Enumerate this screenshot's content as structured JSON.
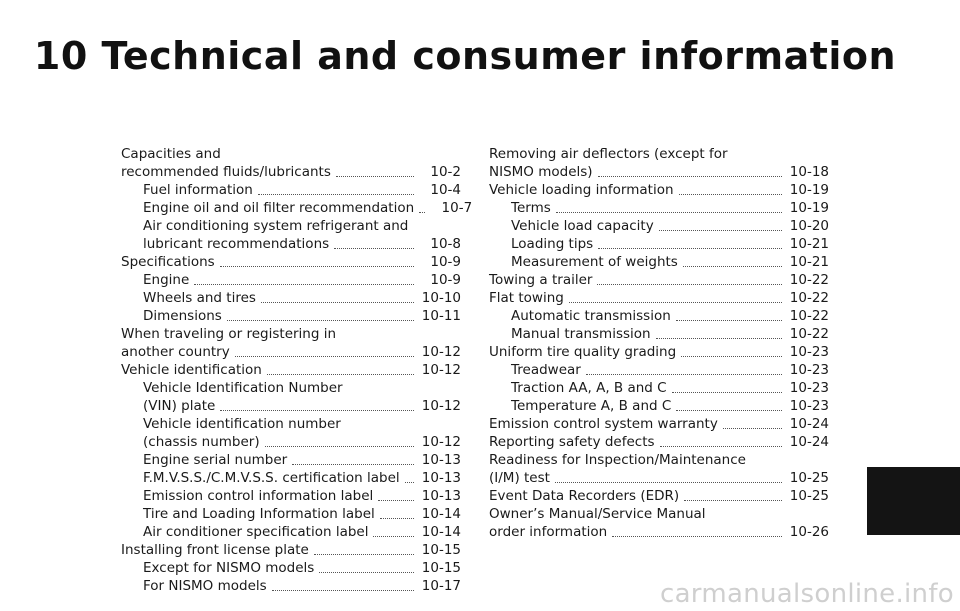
{
  "chapter_title": "10 Technical and consumer information",
  "toc_left": [
    {
      "pre": [
        "Capacities and"
      ],
      "text": "recommended fluids/lubricants",
      "page": "10-2",
      "indent": 0
    },
    {
      "pre": [],
      "text": "Fuel information",
      "page": "10-4",
      "indent": 1
    },
    {
      "pre": [],
      "text": "Engine oil and oil filter recommendation",
      "page": "10-7",
      "indent": 1
    },
    {
      "pre": [
        "Air conditioning system refrigerant and"
      ],
      "text": "lubricant recommendations",
      "page": "10-8",
      "indent": 1
    },
    {
      "pre": [],
      "text": "Specifications",
      "page": "10-9",
      "indent": 0
    },
    {
      "pre": [],
      "text": "Engine",
      "page": "10-9",
      "indent": 1
    },
    {
      "pre": [],
      "text": "Wheels and tires",
      "page": "10-10",
      "indent": 1
    },
    {
      "pre": [],
      "text": "Dimensions",
      "page": "10-11",
      "indent": 1
    },
    {
      "pre": [
        "When traveling or registering in"
      ],
      "text": "another country",
      "page": "10-12",
      "indent": 0
    },
    {
      "pre": [],
      "text": "Vehicle identification",
      "page": "10-12",
      "indent": 0
    },
    {
      "pre": [
        "Vehicle Identification Number"
      ],
      "text": "(VIN) plate",
      "page": "10-12",
      "indent": 1
    },
    {
      "pre": [
        "Vehicle identification number"
      ],
      "text": "(chassis number)",
      "page": "10-12",
      "indent": 1
    },
    {
      "pre": [],
      "text": "Engine serial number",
      "page": "10-13",
      "indent": 1
    },
    {
      "pre": [],
      "text": "F.M.V.S.S./C.M.V.S.S. certification label",
      "page": "10-13",
      "indent": 1
    },
    {
      "pre": [],
      "text": "Emission control information label",
      "page": "10-13",
      "indent": 1
    },
    {
      "pre": [],
      "text": "Tire and Loading Information label",
      "page": "10-14",
      "indent": 1
    },
    {
      "pre": [],
      "text": "Air conditioner specification label",
      "page": "10-14",
      "indent": 1
    },
    {
      "pre": [],
      "text": "Installing front license plate",
      "page": "10-15",
      "indent": 0
    },
    {
      "pre": [],
      "text": "Except for NISMO models",
      "page": "10-15",
      "indent": 1
    },
    {
      "pre": [],
      "text": "For NISMO models",
      "page": "10-17",
      "indent": 1
    }
  ],
  "toc_right": [
    {
      "pre": [
        "Removing air deflectors (except for"
      ],
      "text": "NISMO models)",
      "page": "10-18",
      "indent": 0
    },
    {
      "pre": [],
      "text": "Vehicle loading information",
      "page": "10-19",
      "indent": 0
    },
    {
      "pre": [],
      "text": "Terms",
      "page": "10-19",
      "indent": 1
    },
    {
      "pre": [],
      "text": "Vehicle load capacity",
      "page": "10-20",
      "indent": 1
    },
    {
      "pre": [],
      "text": "Loading tips",
      "page": "10-21",
      "indent": 1
    },
    {
      "pre": [],
      "text": "Measurement of weights",
      "page": "10-21",
      "indent": 1
    },
    {
      "pre": [],
      "text": "Towing a trailer",
      "page": "10-22",
      "indent": 0
    },
    {
      "pre": [],
      "text": "Flat towing",
      "page": "10-22",
      "indent": 0
    },
    {
      "pre": [],
      "text": "Automatic transmission",
      "page": "10-22",
      "indent": 1
    },
    {
      "pre": [],
      "text": "Manual transmission",
      "page": "10-22",
      "indent": 1
    },
    {
      "pre": [],
      "text": "Uniform tire quality grading",
      "page": "10-23",
      "indent": 0
    },
    {
      "pre": [],
      "text": "Treadwear",
      "page": "10-23",
      "indent": 1
    },
    {
      "pre": [],
      "text": "Traction AA, A, B and C",
      "page": "10-23",
      "indent": 1
    },
    {
      "pre": [],
      "text": "Temperature A, B and C",
      "page": "10-23",
      "indent": 1
    },
    {
      "pre": [],
      "text": "Emission control system warranty",
      "page": "10-24",
      "indent": 0
    },
    {
      "pre": [],
      "text": "Reporting safety defects",
      "page": "10-24",
      "indent": 0
    },
    {
      "pre": [
        "Readiness for Inspection/Maintenance"
      ],
      "text": "(I/M) test",
      "page": "10-25",
      "indent": 0
    },
    {
      "pre": [],
      "text": "Event Data Recorders (EDR)",
      "page": "10-25",
      "indent": 0
    },
    {
      "pre": [
        "Owner’s Manual/Service Manual"
      ],
      "text": "order information",
      "page": "10-26",
      "indent": 0
    }
  ],
  "side_tab_color": "#141414",
  "watermark": "carmanualsonline.info"
}
